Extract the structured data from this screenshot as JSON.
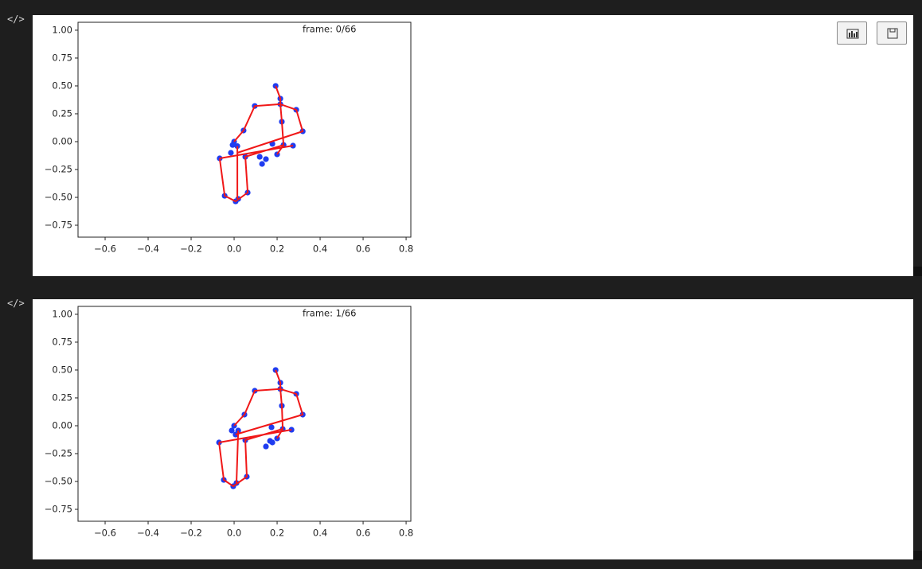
{
  "cells": [
    {
      "prompt": "</>"
    },
    {
      "prompt": "</>"
    }
  ],
  "chart_data": [
    {
      "type": "scatter",
      "annotation": "frame: 0/66",
      "xlim": [
        -0.726,
        0.822
      ],
      "ylim": [
        -0.857,
        1.071
      ],
      "xticks": [
        {
          "value": -0.6,
          "label": "−0.6"
        },
        {
          "value": -0.4,
          "label": "−0.4"
        },
        {
          "value": -0.2,
          "label": "−0.2"
        },
        {
          "value": 0,
          "label": "0.0"
        },
        0.2,
        0.4,
        0.6,
        0.8
      ],
      "yticks": [
        {
          "value": 1,
          "label": "1.00"
        },
        0.75,
        {
          "value": 0.5,
          "label": "0.50"
        },
        0.25,
        {
          "value": 0,
          "label": "0.00"
        },
        {
          "value": -0.25,
          "label": "−0.25"
        },
        {
          "value": -0.5,
          "label": "−0.50"
        },
        {
          "value": -0.75,
          "label": "−0.75"
        }
      ],
      "series": [
        {
          "type": "scatter",
          "color": "#1f3cf0",
          "x": [
            0.193,
            0.215,
            0.215,
            0.096,
            0.289,
            0.222,
            0.319,
            0.044,
            0,
            -0.007,
            0.015,
            -0.015,
            0.178,
            0.23,
            0.274,
            0.2,
            0.052,
            -0.067,
            0.119,
            0.148,
            0.13,
            -0.044,
            0.063,
            0.007,
            0.019
          ],
          "y": [
            0.5,
            0.386,
            0.336,
            0.32,
            0.286,
            0.179,
            0.093,
            0.1,
            0,
            -0.03,
            -0.04,
            -0.1,
            -0.02,
            -0.03,
            -0.036,
            -0.114,
            -0.136,
            -0.15,
            -0.136,
            -0.157,
            -0.2,
            -0.486,
            -0.457,
            -0.536,
            -0.514
          ]
        },
        {
          "type": "line",
          "color": "#f01818",
          "x": [
            0.193,
            0.215,
            0.215,
            null,
            0,
            0.044,
            0.096,
            0.215,
            0.289,
            0.319,
            0.015,
            null,
            0.215,
            0.222,
            0.23,
            0.2,
            null,
            -0.067,
            0.274,
            null,
            -0.067,
            -0.044,
            0.007,
            0.063,
            0.052,
            0.23,
            null,
            0.015,
            0.015
          ],
          "y": [
            0.5,
            0.386,
            0.336,
            null,
            0,
            0.1,
            0.32,
            0.336,
            0.286,
            0.093,
            -0.1,
            null,
            0.336,
            0.179,
            -0.03,
            -0.114,
            null,
            -0.15,
            -0.036,
            null,
            -0.15,
            -0.486,
            -0.536,
            -0.457,
            -0.136,
            -0.03,
            null,
            -0.04,
            -0.514
          ]
        }
      ]
    },
    {
      "type": "scatter",
      "annotation": "frame: 1/66",
      "xlim": [
        -0.726,
        0.822
      ],
      "ylim": [
        -0.857,
        1.071
      ],
      "xticks": [
        {
          "value": -0.6,
          "label": "−0.6"
        },
        {
          "value": -0.4,
          "label": "−0.4"
        },
        {
          "value": -0.2,
          "label": "−0.2"
        },
        {
          "value": 0,
          "label": "0.0"
        },
        0.2,
        0.4,
        0.6,
        0.8
      ],
      "yticks": [
        {
          "value": 1,
          "label": "1.00"
        },
        0.75,
        {
          "value": 0.5,
          "label": "0.50"
        },
        0.25,
        {
          "value": 0,
          "label": "0.00"
        },
        {
          "value": -0.25,
          "label": "−0.25"
        },
        {
          "value": -0.5,
          "label": "−0.50"
        },
        {
          "value": -0.75,
          "label": "−0.75"
        }
      ],
      "series": [
        {
          "type": "scatter",
          "color": "#1f3cf0",
          "x": [
            0.193,
            0.215,
            0.215,
            0.096,
            0.289,
            0.222,
            0.319,
            0.048,
            0,
            -0.011,
            0.019,
            0.007,
            0.174,
            0.226,
            0.267,
            0.2,
            0.052,
            -0.07,
            0.167,
            0.178,
            0.148,
            -0.048,
            0.059,
            -0.004,
            0.011
          ],
          "y": [
            0.5,
            0.386,
            0.33,
            0.314,
            0.286,
            0.179,
            0.1,
            0.1,
            0,
            -0.043,
            -0.043,
            -0.079,
            -0.014,
            -0.029,
            -0.036,
            -0.114,
            -0.129,
            -0.15,
            -0.136,
            -0.15,
            -0.186,
            -0.486,
            -0.457,
            -0.543,
            -0.514
          ]
        },
        {
          "type": "line",
          "color": "#f01818",
          "x": [
            0.193,
            0.215,
            0.215,
            null,
            0,
            0.048,
            0.096,
            0.215,
            0.289,
            0.319,
            0.007,
            null,
            0.215,
            0.222,
            0.226,
            0.2,
            null,
            -0.07,
            0.267,
            null,
            -0.07,
            -0.048,
            -0.004,
            0.059,
            0.052,
            0.226,
            null,
            0.019,
            0.011
          ],
          "y": [
            0.5,
            0.386,
            0.33,
            null,
            0,
            0.1,
            0.314,
            0.33,
            0.286,
            0.1,
            -0.079,
            null,
            0.33,
            0.179,
            -0.029,
            -0.114,
            null,
            -0.15,
            -0.036,
            null,
            -0.15,
            -0.486,
            -0.543,
            -0.457,
            -0.129,
            -0.029,
            null,
            -0.043,
            -0.514
          ]
        }
      ]
    }
  ]
}
